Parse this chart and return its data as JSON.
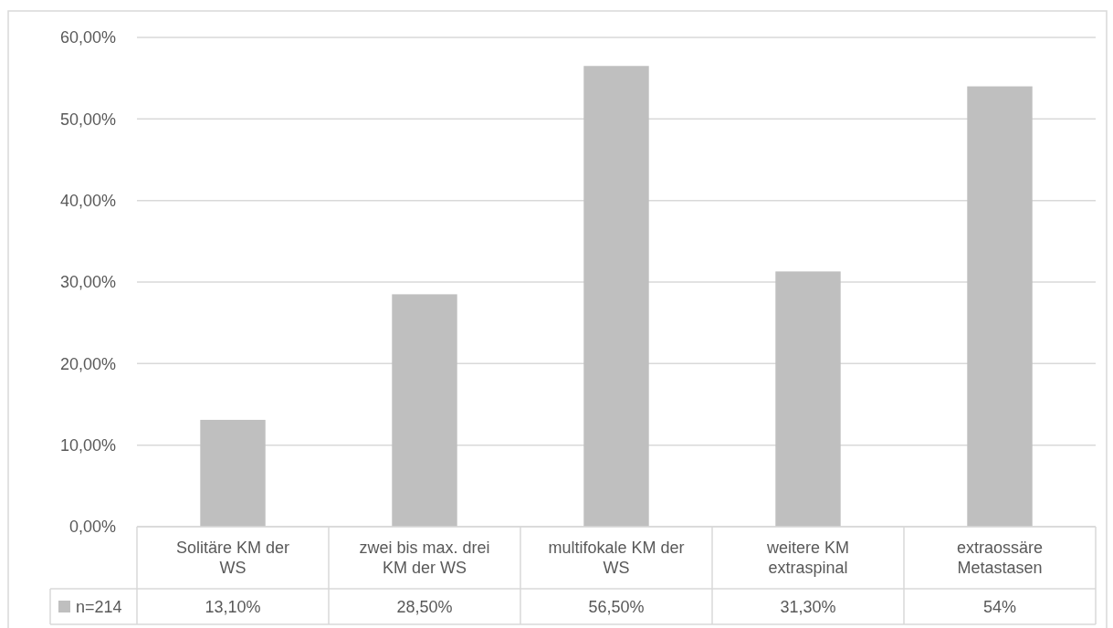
{
  "chart_data": {
    "type": "bar",
    "categories": [
      "Solitäre KM der WS",
      "zwei bis max. drei KM der WS",
      "multifokale KM der WS",
      "weitere KM extraspinal",
      "extraossäre Metastasen"
    ],
    "series": [
      {
        "name": "n=214",
        "color": "#bfbfbf",
        "values": [
          13.1,
          28.5,
          56.5,
          31.3,
          54
        ],
        "value_labels": [
          "13,10%",
          "28,50%",
          "56,50%",
          "31,30%",
          "54%"
        ]
      }
    ],
    "ylim": [
      0,
      60
    ],
    "yticks": [
      {
        "value": 0,
        "label": "0,00%"
      },
      {
        "value": 10,
        "label": "10,00%"
      },
      {
        "value": 20,
        "label": "20,00%"
      },
      {
        "value": 30,
        "label": "30,00%"
      },
      {
        "value": 40,
        "label": "40,00%"
      },
      {
        "value": 50,
        "label": "50,00%"
      },
      {
        "value": 60,
        "label": "60,00%"
      }
    ],
    "grid": "y",
    "legend": "bottom left"
  }
}
